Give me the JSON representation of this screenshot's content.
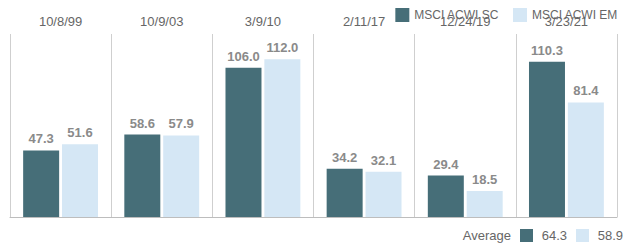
{
  "chart_data": {
    "type": "bar",
    "categories": [
      "10/8/99",
      "10/9/03",
      "3/9/10",
      "2/11/17",
      "12/24/19",
      "3/23/21"
    ],
    "series": [
      {
        "name": "MSCI ACWI SC",
        "color": "#466e78",
        "values": [
          47.3,
          58.6,
          106.0,
          34.2,
          29.4,
          110.3
        ],
        "average": 64.3
      },
      {
        "name": "MSCI ACWI EM",
        "color": "#d5e7f5",
        "values": [
          51.6,
          57.9,
          112.0,
          32.1,
          18.5,
          81.4
        ],
        "average": 58.9
      }
    ],
    "average_label": "Average",
    "ylim": [
      0,
      130
    ],
    "grid": false,
    "legend": "top-right",
    "data_labels": true,
    "tick_labels": "x"
  }
}
